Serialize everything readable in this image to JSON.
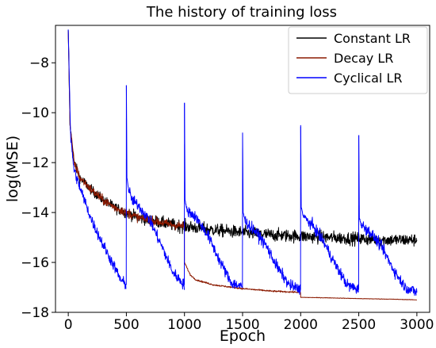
{
  "chart_data": {
    "type": "line",
    "title": "The history of training loss",
    "xlabel": "Epoch",
    "ylabel": "log(MSE)",
    "xlim": [
      -110,
      3110
    ],
    "ylim": [
      -18,
      -6.5
    ],
    "x_ticks": [
      0,
      500,
      1000,
      1500,
      2000,
      2500,
      3000
    ],
    "y_ticks": [
      -18,
      -16,
      -14,
      -12,
      -10,
      -8
    ],
    "grid": false,
    "legend_position": "top-right",
    "series": [
      {
        "name": "Constant LR",
        "color": "#000000",
        "x": [
          0,
          15,
          50,
          100,
          200,
          300,
          400,
          500,
          600,
          700,
          800,
          900,
          1000,
          1250,
          1500,
          1750,
          2000,
          2250,
          2500,
          2750,
          3000
        ],
        "y": [
          -6.7,
          -10.5,
          -12.0,
          -12.6,
          -13.1,
          -13.5,
          -13.8,
          -14.0,
          -14.2,
          -14.3,
          -14.4,
          -14.5,
          -14.55,
          -14.7,
          -14.8,
          -14.9,
          -14.95,
          -15.0,
          -15.05,
          -15.1,
          -15.1
        ]
      },
      {
        "name": "Decay LR",
        "color": "#8b1a00",
        "x": [
          0,
          15,
          50,
          100,
          200,
          300,
          400,
          500,
          600,
          700,
          800,
          900,
          999,
          1000,
          1050,
          1100,
          1250,
          1500,
          1750,
          1999,
          2000,
          2250,
          2500,
          2750,
          3000
        ],
        "y": [
          -6.7,
          -10.5,
          -12.0,
          -12.6,
          -13.1,
          -13.5,
          -13.8,
          -14.0,
          -14.2,
          -14.3,
          -14.4,
          -14.5,
          -14.55,
          -16.0,
          -16.5,
          -16.7,
          -16.9,
          -17.05,
          -17.15,
          -17.2,
          -17.4,
          -17.42,
          -17.45,
          -17.47,
          -17.5
        ]
      },
      {
        "name": "Cyclical LR",
        "color": "#0000ff",
        "segments": [
          {
            "x": [
              0,
              20,
              50,
              100,
              200,
              300,
              400,
              450,
              499
            ],
            "y": [
              -6.7,
              -11.0,
              -12.3,
              -13.0,
              -14.3,
              -15.3,
              -16.2,
              -16.7,
              -16.9
            ]
          },
          {
            "x": [
              500,
              505,
              520,
              550,
              600,
              700,
              800,
              900,
              999
            ],
            "y": [
              -8.9,
              -12.6,
              -13.1,
              -13.5,
              -13.7,
              -14.3,
              -15.3,
              -16.4,
              -16.9
            ]
          },
          {
            "x": [
              1000,
              1005,
              1020,
              1050,
              1100,
              1200,
              1300,
              1400,
              1499
            ],
            "y": [
              -9.6,
              -13.5,
              -13.9,
              -14.0,
              -14.2,
              -14.9,
              -15.9,
              -16.8,
              -17.0
            ]
          },
          {
            "x": [
              1500,
              1505,
              1520,
              1550,
              1600,
              1700,
              1800,
              1900,
              1999
            ],
            "y": [
              -10.8,
              -14.0,
              -14.3,
              -14.5,
              -14.7,
              -15.3,
              -16.2,
              -16.9,
              -17.1
            ]
          },
          {
            "x": [
              2000,
              2005,
              2020,
              2050,
              2100,
              2200,
              2300,
              2400,
              2499
            ],
            "y": [
              -10.5,
              -13.8,
              -14.1,
              -14.3,
              -14.5,
              -15.2,
              -16.1,
              -16.9,
              -17.1
            ]
          },
          {
            "x": [
              2500,
              2505,
              2520,
              2550,
              2600,
              2700,
              2800,
              2900,
              3000
            ],
            "y": [
              -10.9,
              -14.2,
              -14.5,
              -14.6,
              -14.8,
              -15.4,
              -16.3,
              -17.0,
              -17.2
            ]
          }
        ]
      }
    ]
  }
}
